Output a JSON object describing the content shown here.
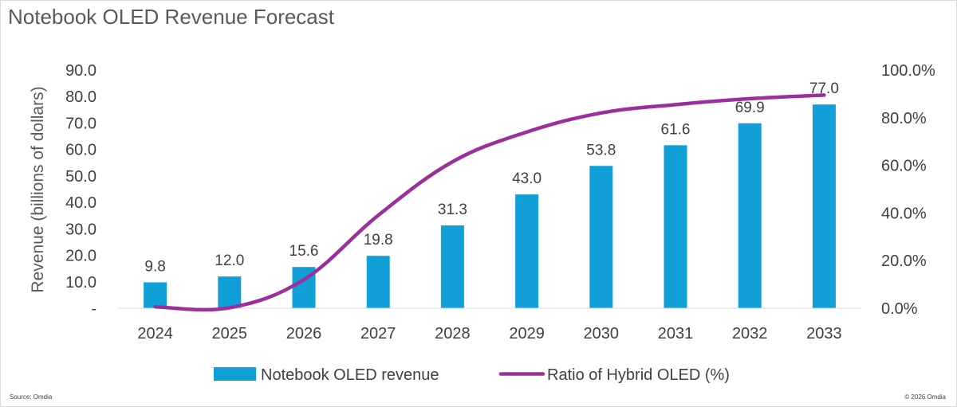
{
  "chart_data": {
    "type": "bar+line",
    "title": "Notebook OLED Revenue Forecast",
    "categories": [
      "2024",
      "2025",
      "2026",
      "2027",
      "2028",
      "2029",
      "2030",
      "2031",
      "2032",
      "2033"
    ],
    "series": [
      {
        "name": "Notebook OLED revenue",
        "type": "bar",
        "axis": "left",
        "color": "#119FD8",
        "values": [
          9.8,
          12.0,
          15.6,
          19.8,
          31.3,
          43.0,
          53.8,
          61.6,
          69.9,
          77.0
        ],
        "labels": [
          "9.8",
          "12.0",
          "15.6",
          "19.8",
          "31.3",
          "43.0",
          "53.8",
          "61.6",
          "69.9",
          "77.0"
        ]
      },
      {
        "name": "Ratio of Hybrid OLED (%)",
        "type": "line",
        "axis": "right",
        "color": "#9B2F9B",
        "values": [
          0.6,
          0.2,
          12.0,
          39.0,
          61.5,
          74.0,
          82.0,
          85.5,
          88.0,
          89.5
        ]
      }
    ],
    "ylabel": "Revenue (billions of dollars)",
    "ylim": [
      0,
      90
    ],
    "y_ticks": [
      "-",
      "10.0",
      "20.0",
      "30.0",
      "40.0",
      "50.0",
      "60.0",
      "70.0",
      "80.0",
      "90.0"
    ],
    "y2lim": [
      0,
      100
    ],
    "y2_ticks": [
      "0.0%",
      "20.0%",
      "40.0%",
      "60.0%",
      "80.0%",
      "100.0%"
    ],
    "grid": false,
    "legend_position": "bottom"
  },
  "footer": {
    "source": "Source: Omdia",
    "copyright": "© 2026 Omdia"
  }
}
